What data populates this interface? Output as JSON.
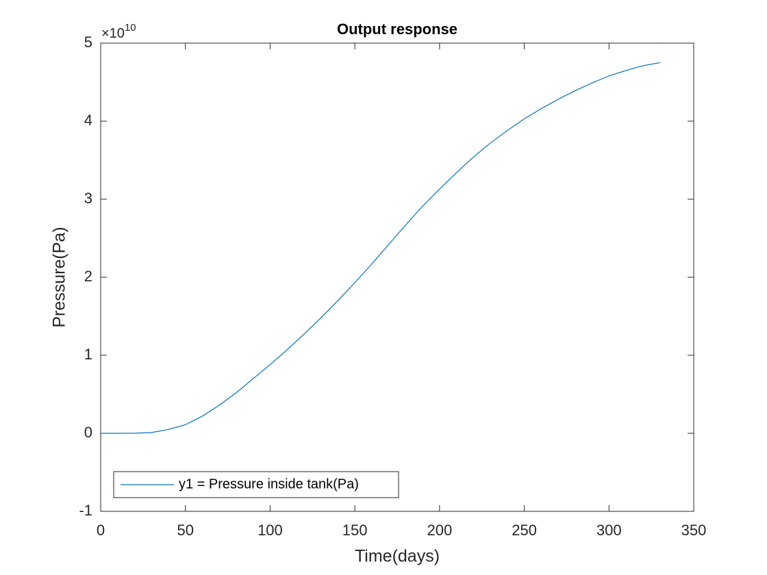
{
  "chart_data": {
    "type": "line",
    "title": "Output response",
    "x_label": "Time(days)",
    "y_label": "Pressure(Pa)",
    "y_multiplier_base": "×10",
    "y_multiplier_exponent": "10",
    "x": [
      0,
      10,
      20,
      30,
      40,
      50,
      60,
      70,
      80,
      90,
      100,
      110,
      120,
      130,
      140,
      150,
      160,
      170,
      180,
      190,
      200,
      210,
      220,
      230,
      240,
      250,
      260,
      270,
      280,
      290,
      300,
      310,
      320,
      330
    ],
    "series": [
      {
        "name": "y1 = Pressure inside tank(Pa)",
        "color": "#0072bd",
        "values": [
          0,
          0,
          0.001,
          0.01,
          0.05,
          0.11,
          0.22,
          0.36,
          0.52,
          0.7,
          0.88,
          1.07,
          1.27,
          1.48,
          1.7,
          1.93,
          2.17,
          2.42,
          2.67,
          2.91,
          3.13,
          3.34,
          3.54,
          3.72,
          3.88,
          4.03,
          4.16,
          4.28,
          4.39,
          4.49,
          4.58,
          4.65,
          4.71,
          4.75
        ]
      }
    ],
    "xlim": [
      0,
      350
    ],
    "xticks": [
      0,
      50,
      100,
      150,
      200,
      250,
      300,
      350
    ],
    "ylim": [
      -1,
      5
    ],
    "yticks": [
      -1,
      0,
      1,
      2,
      3,
      4,
      5
    ],
    "grid": false,
    "legend": "southwest"
  }
}
